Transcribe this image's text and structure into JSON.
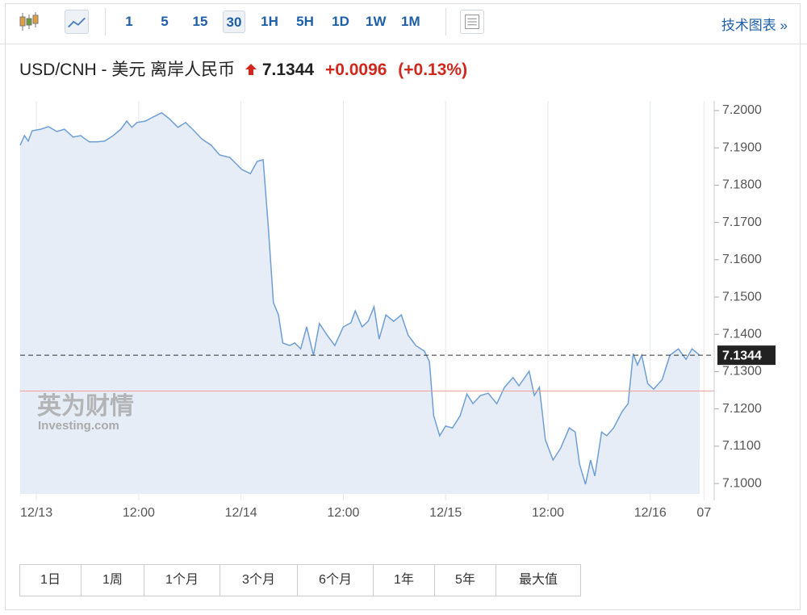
{
  "toolbar": {
    "intervals": [
      "1",
      "5",
      "15",
      "30",
      "1H",
      "5H",
      "1D",
      "1W",
      "1M"
    ],
    "selected_interval": "30",
    "tech_chart": "技术图表 »"
  },
  "header": {
    "symbol": "USD/CNH - 美元 离岸人民币",
    "change": "+0.0096",
    "change_pct": "(+0.13%)"
  },
  "watermark": {
    "brand": "英为财情",
    "site": "Investing.com"
  },
  "ranges": [
    "1日",
    "1周",
    "1个月",
    "3个月",
    "6个月",
    "1年",
    "5年",
    "最大值"
  ],
  "chart_data": {
    "type": "area",
    "color": "#6e9fd4",
    "fill": "#e6edf7",
    "grid": "x",
    "current_value": 7.1344,
    "prev_close": 7.1248,
    "x": [
      -1.9,
      -1.4,
      -0.95,
      -0.5,
      0.5,
      1.4,
      2.4,
      3.3,
      4.3,
      5.2,
      6.2,
      7.1,
      8.0,
      9.0,
      9.9,
      10.6,
      11.2,
      11.8,
      12.8,
      13.7,
      14.7,
      15.6,
      16.6,
      17.5,
      18.5,
      19.4,
      20.5,
      21.5,
      22.7,
      24.1,
      25.1,
      25.9,
      26.6,
      27.2,
      27.8,
      28.4,
      28.9,
      29.7,
      30.3,
      31.0,
      31.7,
      32.5,
      33.2,
      34.1,
      35.0,
      36.0,
      36.9,
      37.4,
      38.2,
      38.9,
      39.6,
      40.2,
      41.0,
      41.9,
      42.8,
      43.6,
      44.5,
      45.5,
      46.1,
      46.6,
      47.3,
      48.0,
      48.8,
      49.7,
      50.5,
      51.2,
      52.1,
      53.0,
      54.0,
      54.9,
      55.9,
      56.6,
      57.8,
      58.4,
      59.0,
      59.7,
      60.6,
      61.5,
      62.5,
      63.2,
      63.7,
      64.4,
      65.0,
      65.5,
      66.3,
      66.9,
      67.7,
      68.7,
      69.4,
      70.0,
      70.5,
      71.0,
      71.7,
      72.4,
      73.4,
      74.3,
      75.3,
      76.2,
      76.9,
      77.8
    ],
    "values": [
      7.1907,
      7.1933,
      7.1918,
      7.1946,
      7.195,
      7.1957,
      7.1944,
      7.195,
      7.1929,
      7.1933,
      7.1916,
      7.1916,
      7.1918,
      7.1933,
      7.195,
      7.1972,
      7.1955,
      7.1968,
      7.1972,
      7.1983,
      7.1994,
      7.1978,
      7.1955,
      7.1968,
      7.1946,
      7.1924,
      7.1907,
      7.1881,
      7.1874,
      7.1842,
      7.1831,
      7.1864,
      7.1868,
      7.169,
      7.1485,
      7.1452,
      7.1377,
      7.137,
      7.1377,
      7.1361,
      7.142,
      7.1344,
      7.1429,
      7.1398,
      7.137,
      7.142,
      7.1431,
      7.1463,
      7.142,
      7.1435,
      7.1474,
      7.1387,
      7.1452,
      7.1435,
      7.1452,
      7.1398,
      7.137,
      7.1355,
      7.1327,
      7.1182,
      7.1128,
      7.1154,
      7.1149,
      7.1182,
      7.124,
      7.1214,
      7.1236,
      7.1242,
      7.1214,
      7.1258,
      7.1284,
      7.1262,
      7.1301,
      7.1236,
      7.1258,
      7.1117,
      7.1063,
      7.1095,
      7.1149,
      7.1138,
      7.1052,
      7.0998,
      7.1063,
      7.102,
      7.1138,
      7.1128,
      7.1149,
      7.1193,
      7.1214,
      7.1348,
      7.1318,
      7.1344,
      7.1268,
      7.1253,
      7.1279,
      7.1344,
      7.1361,
      7.1333,
      7.1361,
      7.1344
    ],
    "xlim": [
      -1.9,
      79.5
    ],
    "ylim": [
      7.0972,
      7.2026
    ],
    "xticks": [
      {
        "value": 0,
        "label": "12/13"
      },
      {
        "value": 12,
        "label": "12:00"
      },
      {
        "value": 24,
        "label": "12/14"
      },
      {
        "value": 36,
        "label": "12:00"
      },
      {
        "value": 48,
        "label": "12/15"
      },
      {
        "value": 60,
        "label": "12:00"
      },
      {
        "value": 72,
        "label": "12/16"
      },
      {
        "value": 78.3,
        "label": "07"
      }
    ],
    "yticks": [
      {
        "value": 7.2,
        "label": "7.2000"
      },
      {
        "value": 7.19,
        "label": "7.1900"
      },
      {
        "value": 7.18,
        "label": "7.1800"
      },
      {
        "value": 7.17,
        "label": "7.1700"
      },
      {
        "value": 7.16,
        "label": "7.1600"
      },
      {
        "value": 7.15,
        "label": "7.1500"
      },
      {
        "value": 7.14,
        "label": "7.1400"
      },
      {
        "value": 7.13,
        "label": "7.1300"
      },
      {
        "value": 7.12,
        "label": "7.1200"
      },
      {
        "value": 7.11,
        "label": "7.1100"
      },
      {
        "value": 7.1,
        "label": "7.1000"
      }
    ]
  }
}
